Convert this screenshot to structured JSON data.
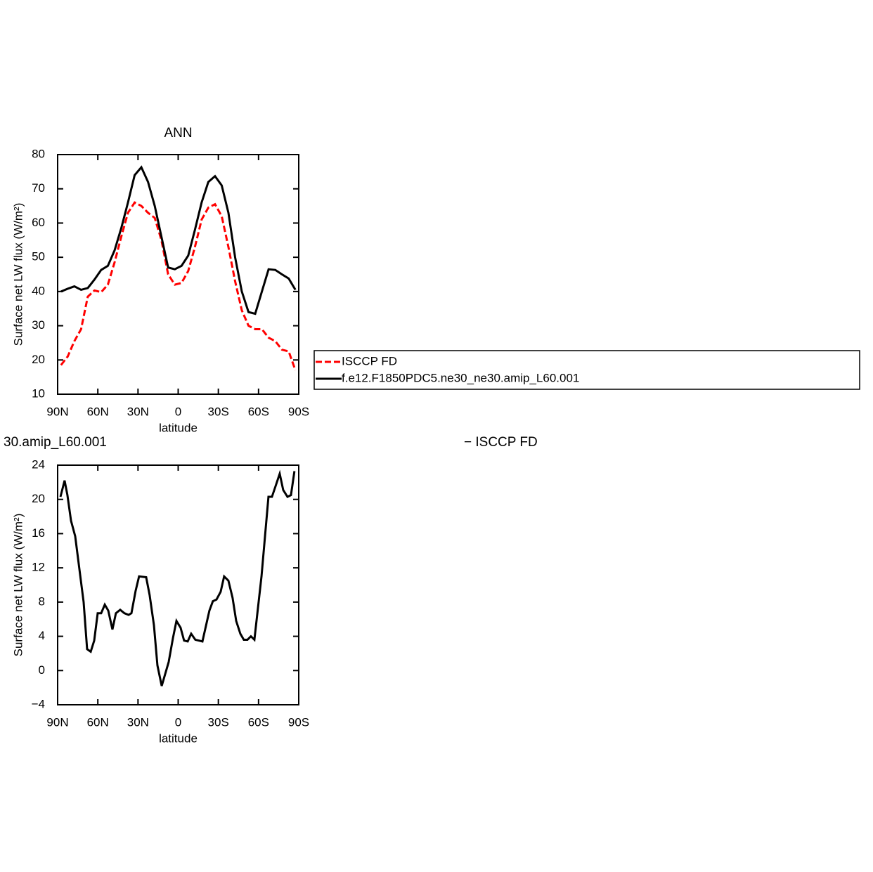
{
  "chart_data": [
    {
      "type": "line",
      "title": "ANN",
      "xlabel": "latitude",
      "ylabel": "Surface net LW flux (W/m²)",
      "x": [
        87.5,
        82.5,
        77.5,
        72.5,
        67.5,
        62.5,
        57.5,
        52.5,
        47.5,
        42.5,
        37.5,
        32.5,
        27.5,
        22.5,
        17.5,
        12.5,
        7.5,
        2.5,
        -2.5,
        -7.5,
        -12.5,
        -17.5,
        -22.5,
        -27.5,
        -32.5,
        -37.5,
        -42.5,
        -47.5,
        -52.5,
        -57.5,
        -62.5,
        -67.5,
        -72.5,
        -77.5,
        -82.5,
        -87.5
      ],
      "xlim": [
        90,
        -90
      ],
      "xticks": [
        {
          "value": 90,
          "label": "90N"
        },
        {
          "value": 60,
          "label": "60N"
        },
        {
          "value": 30,
          "label": "30N"
        },
        0,
        {
          "value": -30,
          "label": "30S"
        },
        {
          "value": -60,
          "label": "60S"
        },
        {
          "value": -90,
          "label": "90S"
        }
      ],
      "ylim": [
        10,
        80
      ],
      "yticks": [
        10,
        20,
        30,
        40,
        50,
        60,
        70,
        80
      ],
      "legend": "outside-right",
      "series": [
        {
          "name": "ISCCP FD",
          "color": "#ff0000",
          "dashed": true,
          "values": [
            18.5,
            21,
            25.5,
            29,
            38.5,
            40.3,
            39.8,
            42,
            48.5,
            56,
            63,
            66,
            65,
            63,
            61.5,
            55,
            45,
            42,
            42.5,
            46,
            53,
            61,
            64.5,
            65.5,
            62,
            53,
            43,
            34.5,
            30,
            29,
            29,
            26.5,
            25.5,
            23,
            22.5,
            17
          ]
        },
        {
          "name": "f.e12.F1850PDC5.ne30_ne30.amip_L60.001",
          "color": "#000000",
          "dashed": false,
          "values": [
            40,
            40.8,
            41.5,
            40.5,
            41,
            43.5,
            46.3,
            47.5,
            52,
            58.5,
            66,
            74,
            76.3,
            72,
            65,
            56,
            47,
            46.5,
            47.5,
            50.5,
            58,
            66,
            72,
            73.7,
            71,
            63,
            50,
            40,
            34,
            33.5,
            40,
            46.5,
            46.3,
            45,
            43.8,
            40.5
          ]
        }
      ]
    },
    {
      "type": "line",
      "title_left": "30.amip_L60.001",
      "title_right": "− ISCCP FD",
      "xlabel": "latitude",
      "ylabel": "Surface net LW flux (W/m²)",
      "x": [
        87.9,
        84.8,
        82.7,
        80.0,
        76.9,
        70.6,
        68.0,
        65.3,
        62.7,
        60.1,
        57.5,
        54.8,
        52.2,
        49.1,
        46.5,
        43.3,
        40.2,
        37.0,
        34.9,
        31.8,
        29.2,
        23.9,
        21.3,
        18.1,
        15.5,
        12.3,
        7.1,
        3.9,
        1.3,
        -1.8,
        -4.4,
        -7.1,
        -9.7,
        -12.8,
        -18.1,
        -23.3,
        -25.9,
        -28.6,
        -31.7,
        -34.3,
        -37.5,
        -40.6,
        -43.3,
        -46.4,
        -49.0,
        -51.7,
        -54.3,
        -56.9,
        -62.2,
        -67.4,
        -70.0,
        -72.6,
        -75.8,
        -78.4,
        -81.6,
        -84.2,
        -86.8
      ],
      "xlim": [
        90,
        -90
      ],
      "xticks": [
        {
          "value": 90,
          "label": "90N"
        },
        {
          "value": 60,
          "label": "60N"
        },
        {
          "value": 30,
          "label": "30N"
        },
        0,
        {
          "value": -30,
          "label": "30S"
        },
        {
          "value": -60,
          "label": "60S"
        },
        {
          "value": -90,
          "label": "90S"
        }
      ],
      "ylim": [
        -4,
        24
      ],
      "yticks": [
        {
          "value": -4,
          "label": "−4"
        },
        0,
        4,
        8,
        12,
        16,
        20,
        24
      ],
      "series": [
        {
          "color": "#000000",
          "dashed": false,
          "values": [
            20.3,
            22.2,
            20.5,
            17.5,
            15.7,
            8,
            2.5,
            2.2,
            3.5,
            6.7,
            6.7,
            7.7,
            7,
            4.8,
            6.7,
            7.1,
            6.7,
            6.5,
            6.7,
            9.3,
            11,
            10.9,
            8.8,
            5.3,
            0.6,
            -1.8,
            1,
            3.8,
            5.8,
            5,
            3.5,
            3.4,
            4.3,
            3.6,
            3.4,
            7,
            8.1,
            8.3,
            9.2,
            11,
            10.5,
            8.5,
            5.8,
            4.3,
            3.6,
            3.6,
            4,
            3.6,
            11,
            20.3,
            20.3,
            21.5,
            23,
            21.1,
            20.3,
            20.5,
            23.3
          ]
        }
      ]
    }
  ]
}
